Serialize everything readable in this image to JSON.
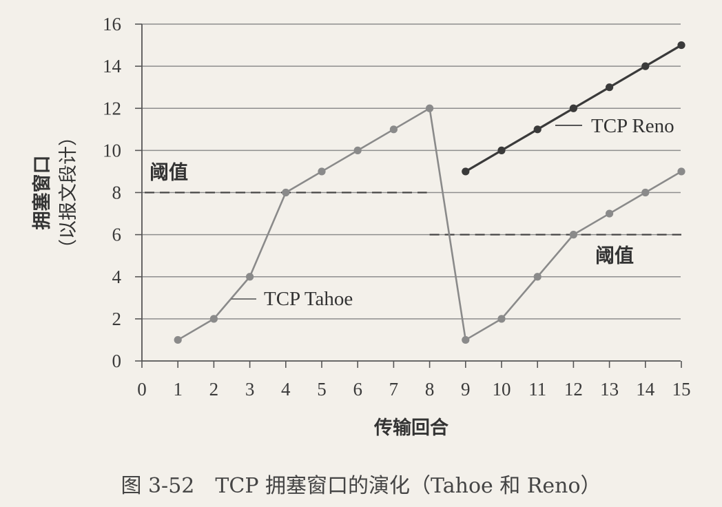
{
  "chart_data": {
    "type": "line",
    "caption": "图 3-52　TCP 拥塞窗口的演化（Tahoe 和 Reno）",
    "xlabel": "传输回合",
    "ylabel_line1": "拥塞窗口",
    "ylabel_line2": "（以报文段计）",
    "xlim": [
      0,
      15
    ],
    "ylim": [
      0,
      16
    ],
    "x_ticks": [
      0,
      1,
      2,
      3,
      4,
      5,
      6,
      7,
      8,
      9,
      10,
      11,
      12,
      13,
      14,
      15
    ],
    "y_ticks": [
      0,
      2,
      4,
      6,
      8,
      10,
      12,
      14,
      16
    ],
    "grid": "horizontal",
    "series": [
      {
        "name": "TCP Tahoe",
        "color": "#8a8a8a",
        "x": [
          1,
          2,
          3,
          4,
          5,
          6,
          7,
          8,
          9,
          10,
          11,
          12,
          13,
          14,
          15
        ],
        "y": [
          1,
          2,
          4,
          8,
          9,
          10,
          11,
          12,
          1,
          2,
          4,
          6,
          7,
          8,
          9
        ]
      },
      {
        "name": "TCP Reno",
        "color": "#3a3a3a",
        "x": [
          9,
          10,
          11,
          12,
          13,
          14,
          15
        ],
        "y": [
          9,
          10,
          11,
          12,
          13,
          14,
          15
        ]
      }
    ],
    "thresholds": [
      {
        "label": "阈值",
        "y": 8,
        "x_start": 0,
        "x_end": 8
      },
      {
        "label": "阈值",
        "y": 6,
        "x_start": 8,
        "x_end": 15
      }
    ]
  }
}
